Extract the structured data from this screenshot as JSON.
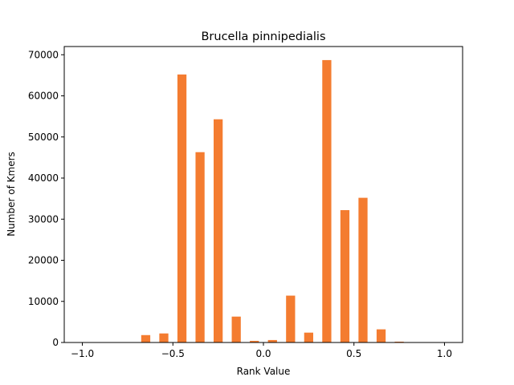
{
  "chart_data": {
    "type": "bar",
    "title": "Brucella pinnipedialis",
    "xlabel": "Rank Value",
    "ylabel": "Number of Kmers",
    "xlim": [
      -1.1,
      1.1
    ],
    "ylim": [
      0,
      72000
    ],
    "xticks": [
      -1.0,
      -0.5,
      0.0,
      0.5,
      1.0
    ],
    "xtick_labels": [
      "−1.0",
      "−0.5",
      "0.0",
      "0.5",
      "1.0"
    ],
    "yticks": [
      0,
      10000,
      20000,
      30000,
      40000,
      50000,
      60000,
      70000
    ],
    "ytick_labels": [
      "0",
      "10000",
      "20000",
      "30000",
      "40000",
      "50000",
      "60000",
      "70000"
    ],
    "bar_width": 0.05,
    "bar_color": "#f47c30",
    "grid": false,
    "x": [
      -0.65,
      -0.55,
      -0.45,
      -0.35,
      -0.25,
      -0.15,
      -0.05,
      0.05,
      0.15,
      0.25,
      0.35,
      0.45,
      0.55,
      0.65,
      0.75
    ],
    "values": [
      1800,
      2200,
      65200,
      46300,
      54300,
      6300,
      400,
      600,
      11400,
      2400,
      68700,
      32200,
      35200,
      3200,
      200
    ]
  }
}
